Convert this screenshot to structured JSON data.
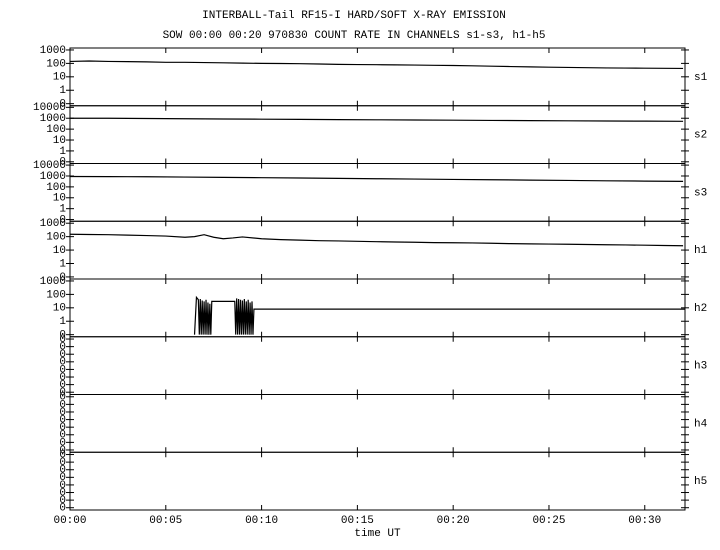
{
  "title": "INTERBALL-Tail RF15-I HARD/SOFT X-RAY EMISSION",
  "subtitle": "SOW 00:00 00:20 970830  COUNT RATE IN CHANNELS s1-s3, h1-h5",
  "chart_data": [
    {
      "type": "line",
      "label": "s1",
      "log_y": true,
      "color": "#000000",
      "xlim": [
        0,
        32.1
      ],
      "ylim": [
        0.07,
        1400
      ],
      "yticks": [
        1000,
        100,
        10,
        1,
        {
          "value": 0.1,
          "label": "0"
        }
      ],
      "x": [
        0,
        1,
        2,
        3,
        4,
        5,
        6,
        7,
        8,
        9,
        10,
        11,
        12,
        13,
        14,
        15,
        16,
        17,
        18,
        19,
        20,
        21,
        22,
        23,
        24,
        25,
        26,
        27,
        28,
        29,
        30,
        31,
        32
      ],
      "values": [
        140,
        150,
        140,
        135,
        130,
        120,
        120,
        115,
        110,
        105,
        100,
        98,
        95,
        90,
        85,
        82,
        80,
        78,
        75,
        72,
        70,
        66,
        62,
        58,
        55,
        52,
        50,
        48,
        46,
        45,
        44,
        43,
        42
      ]
    },
    {
      "type": "line",
      "label": "s2",
      "log_y": true,
      "color": "#000000",
      "xlim": [
        0,
        32.1
      ],
      "ylim": [
        0.07,
        14000
      ],
      "yticks": [
        10000,
        1000,
        100,
        10,
        1,
        {
          "value": 0.1,
          "label": "0"
        }
      ],
      "x": [
        0,
        2,
        4,
        6,
        8,
        10,
        12,
        14,
        16,
        18,
        20,
        22,
        24,
        26,
        28,
        30,
        32
      ],
      "values": [
        1000,
        1000,
        950,
        900,
        850,
        820,
        780,
        750,
        720,
        690,
        660,
        630,
        600,
        580,
        560,
        540,
        520
      ]
    },
    {
      "type": "line",
      "label": "s3",
      "log_y": true,
      "color": "#000000",
      "xlim": [
        0,
        32.1
      ],
      "ylim": [
        0.07,
        14000
      ],
      "yticks": [
        10000,
        1000,
        100,
        10,
        1,
        {
          "value": 0.1,
          "label": "0"
        }
      ],
      "x": [
        0,
        2,
        4,
        6,
        8,
        10,
        12,
        14,
        16,
        18,
        20,
        22,
        24,
        26,
        28,
        30,
        32
      ],
      "values": [
        900,
        880,
        850,
        800,
        750,
        700,
        650,
        600,
        560,
        520,
        480,
        450,
        420,
        390,
        360,
        340,
        320
      ]
    },
    {
      "type": "line",
      "label": "h1",
      "log_y": true,
      "color": "#000000",
      "xlim": [
        0,
        32.1
      ],
      "ylim": [
        0.07,
        1400
      ],
      "yticks": [
        1000,
        100,
        10,
        1,
        {
          "value": 0.1,
          "label": "0"
        }
      ],
      "x": [
        0,
        1,
        2,
        3,
        4,
        5,
        6,
        6.5,
        7,
        7.5,
        8,
        8.5,
        9,
        10,
        11,
        12,
        13,
        14,
        15,
        16,
        17,
        18,
        19,
        20,
        21,
        22,
        23,
        24,
        25,
        26,
        27,
        28,
        29,
        30,
        31,
        32
      ],
      "values": [
        150,
        145,
        140,
        130,
        120,
        110,
        90,
        100,
        140,
        90,
        70,
        80,
        95,
        70,
        60,
        55,
        50,
        48,
        45,
        42,
        40,
        38,
        36,
        35,
        34,
        32,
        30,
        29,
        28,
        27,
        26,
        25,
        24,
        23,
        22,
        21
      ]
    },
    {
      "type": "line",
      "label": "h2",
      "log_y": true,
      "color": "#000000",
      "xlim": [
        0,
        32.1
      ],
      "ylim": [
        0.07,
        1400
      ],
      "yticks": [
        1000,
        100,
        10,
        1,
        {
          "value": 0.1,
          "label": "0"
        }
      ],
      "x": [
        6.5,
        6.6,
        6.7,
        6.75,
        6.8,
        6.85,
        6.9,
        6.95,
        7.0,
        7.05,
        7.1,
        7.15,
        7.2,
        7.25,
        7.3,
        7.35,
        7.4,
        8.6,
        8.65,
        8.7,
        8.75,
        8.8,
        8.85,
        8.9,
        8.95,
        9.0,
        9.05,
        9.1,
        9.15,
        9.2,
        9.25,
        9.3,
        9.35,
        9.4,
        9.45,
        9.5,
        9.55,
        9.6,
        32.1
      ],
      "values": [
        0.1,
        60,
        40,
        0.1,
        45,
        0.1,
        35,
        0.1,
        30,
        0.1,
        40,
        0.1,
        25,
        0.1,
        20,
        0.1,
        30,
        30,
        0.1,
        50,
        0.1,
        45,
        0.1,
        40,
        0.1,
        35,
        0.1,
        45,
        0.1,
        30,
        0.1,
        40,
        0.1,
        25,
        0.1,
        30,
        0.1,
        8,
        8
      ]
    },
    {
      "type": "line",
      "label": "h3",
      "log_y": true,
      "xlim": [
        0,
        32.1
      ],
      "ylim": [
        5e-09,
        0.2
      ],
      "yticks": [
        {
          "value": 0.1,
          "label": "0"
        },
        {
          "value": 0.01,
          "label": "0"
        },
        {
          "value": 0.001,
          "label": "0"
        },
        {
          "value": 0.0001,
          "label": "0"
        },
        {
          "value": 1e-05,
          "label": "0"
        },
        {
          "value": 1e-06,
          "label": "0"
        },
        {
          "value": 1e-07,
          "label": "0"
        },
        {
          "value": 1e-08,
          "label": "0"
        }
      ]
    },
    {
      "type": "line",
      "label": "h4",
      "log_y": true,
      "xlim": [
        0,
        32.1
      ],
      "ylim": [
        5e-09,
        0.2
      ],
      "yticks": [
        {
          "value": 0.1,
          "label": "0"
        },
        {
          "value": 0.01,
          "label": "0"
        },
        {
          "value": 0.001,
          "label": "0"
        },
        {
          "value": 0.0001,
          "label": "0"
        },
        {
          "value": 1e-05,
          "label": "0"
        },
        {
          "value": 1e-06,
          "label": "0"
        },
        {
          "value": 1e-07,
          "label": "0"
        },
        {
          "value": 1e-08,
          "label": "0"
        }
      ]
    },
    {
      "type": "line",
      "label": "h5",
      "log_y": true,
      "xlim": [
        0,
        32.1
      ],
      "ylim": [
        5e-09,
        0.2
      ],
      "yticks": [
        {
          "value": 0.1,
          "label": "0"
        },
        {
          "value": 0.01,
          "label": "0"
        },
        {
          "value": 0.001,
          "label": "0"
        },
        {
          "value": 0.0001,
          "label": "0"
        },
        {
          "value": 1e-05,
          "label": "0"
        },
        {
          "value": 1e-06,
          "label": "0"
        },
        {
          "value": 1e-07,
          "label": "0"
        },
        {
          "value": 1e-08,
          "label": "0"
        }
      ],
      "xlabel": "time UT",
      "xticks": [
        {
          "value": 0,
          "label": "00:00"
        },
        {
          "value": 5,
          "label": "00:05"
        },
        {
          "value": 10,
          "label": "00:10"
        },
        {
          "value": 15,
          "label": "00:15"
        },
        {
          "value": 20,
          "label": "00:20"
        },
        {
          "value": 25,
          "label": "00:25"
        },
        {
          "value": 30,
          "label": "00:30"
        }
      ]
    }
  ]
}
